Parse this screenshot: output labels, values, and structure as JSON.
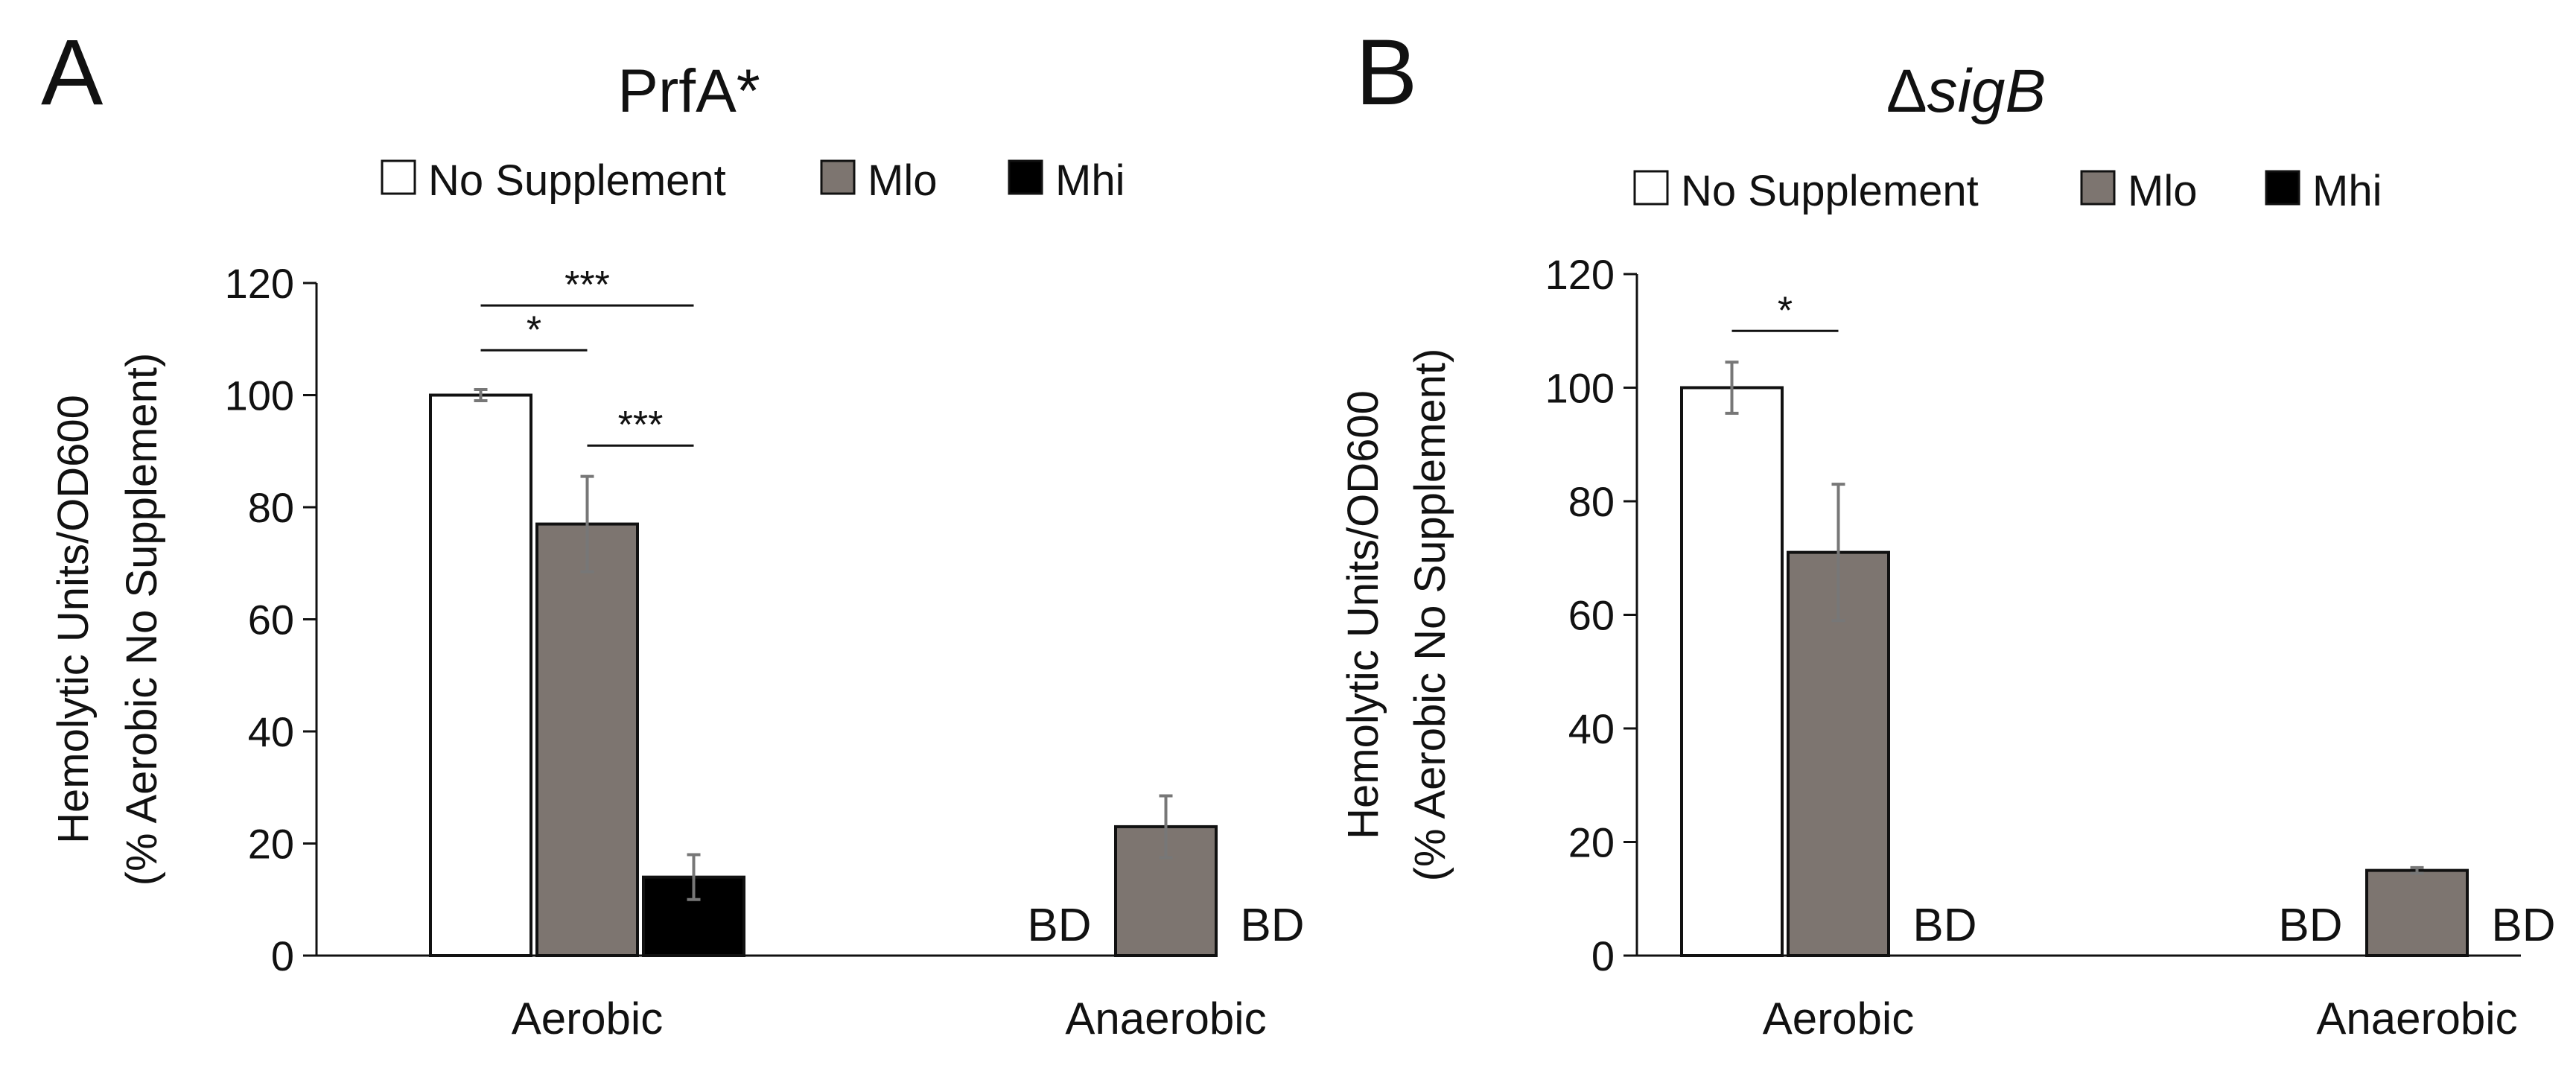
{
  "colors": {
    "no_supplement": "#ffffff",
    "mlo": "#7d7570",
    "mhi": "#000000",
    "bar_stroke": "#111111",
    "errorbar": "#777777",
    "axis": "#111111"
  },
  "chart_data": [
    {
      "panel": "A",
      "title": "PrfA*",
      "title_italic": false,
      "type": "bar",
      "categories": [
        "Aerobic",
        "Anaerobic"
      ],
      "ylabel_line1": "Hemolytic Units/OD600",
      "ylabel_line2": "(% Aerobic No Supplement)",
      "ylim": [
        0,
        120
      ],
      "yticks": [
        0,
        20,
        40,
        60,
        80,
        100,
        120
      ],
      "legend": [
        {
          "label": "No Supplement",
          "color_key": "no_supplement"
        },
        {
          "label": "Mlo",
          "color_key": "mlo"
        },
        {
          "label": "Mhi",
          "color_key": "mhi"
        }
      ],
      "series": [
        {
          "name": "No Supplement",
          "values": [
            100,
            null
          ],
          "errors": [
            1,
            null
          ],
          "labels": [
            null,
            "BD"
          ]
        },
        {
          "name": "Mlo",
          "values": [
            77,
            23
          ],
          "errors": [
            8.5,
            5.5
          ],
          "labels": [
            null,
            null
          ]
        },
        {
          "name": "Mhi",
          "values": [
            14,
            null
          ],
          "errors": [
            4,
            null
          ],
          "labels": [
            null,
            "BD"
          ]
        }
      ],
      "significance": [
        {
          "from_series": 0,
          "to_series": 1,
          "category": 0,
          "level": 108,
          "label": "*"
        },
        {
          "from_series": 0,
          "to_series": 2,
          "category": 0,
          "level": 116,
          "label": "***"
        },
        {
          "from_series": 1,
          "to_series": 2,
          "category": 0,
          "level": 91,
          "label": "***"
        }
      ]
    },
    {
      "panel": "B",
      "title_prefix": "Δ",
      "title": "sigB",
      "title_italic": true,
      "type": "bar",
      "categories": [
        "Aerobic",
        "Anaerobic"
      ],
      "ylabel_line1": "Hemolytic Units/OD600",
      "ylabel_line2": "(% Aerobic No Supplement)",
      "ylim": [
        0,
        120
      ],
      "yticks": [
        0,
        20,
        40,
        60,
        80,
        100,
        120
      ],
      "legend": [
        {
          "label": "No Supplement",
          "color_key": "no_supplement"
        },
        {
          "label": "Mlo",
          "color_key": "mlo"
        },
        {
          "label": "Mhi",
          "color_key": "mhi"
        }
      ],
      "series": [
        {
          "name": "No Supplement",
          "values": [
            100,
            null
          ],
          "errors": [
            4.5,
            null
          ],
          "labels": [
            null,
            "BD"
          ]
        },
        {
          "name": "Mlo",
          "values": [
            71,
            15
          ],
          "errors": [
            12,
            0.5
          ],
          "labels": [
            null,
            null
          ]
        },
        {
          "name": "Mhi",
          "values": [
            null,
            null
          ],
          "errors": [
            null,
            null
          ],
          "labels": [
            "BD",
            "BD"
          ]
        }
      ],
      "significance": [
        {
          "from_series": 0,
          "to_series": 1,
          "category": 0,
          "level": 110,
          "label": "*"
        }
      ]
    }
  ]
}
